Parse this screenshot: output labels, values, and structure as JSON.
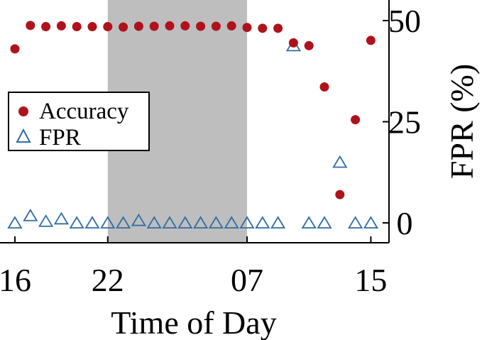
{
  "chart_data": {
    "type": "scatter",
    "xlabel": "Time of Day",
    "ylabel": "FPR (%)",
    "x_ticks": [
      "16",
      "22",
      "07",
      "15"
    ],
    "y_ticks": [
      "0",
      "25",
      "50"
    ],
    "ylim": [
      0,
      50
    ],
    "grid": false,
    "legend_position": "left",
    "shaded_region": {
      "from": "22",
      "to": "07",
      "color": "#bebebe"
    },
    "series": [
      {
        "name": "Accuracy",
        "marker": "filled-circle",
        "color": "#b0121b",
        "values": [
          43,
          48.8,
          48.5,
          48.7,
          48.5,
          48.5,
          48.5,
          48.4,
          48.6,
          48.6,
          48.7,
          48.7,
          48.6,
          48.6,
          48.7,
          48.3,
          48.1,
          48.1,
          44.5,
          43.8,
          33.6,
          7,
          25.5,
          45.1
        ]
      },
      {
        "name": "FPR",
        "marker": "hollow-triangle",
        "color": "#2e6da4",
        "values": [
          0,
          1.8,
          0.4,
          1,
          0,
          0,
          0,
          0,
          0.6,
          0,
          0,
          0,
          0,
          0,
          0,
          0,
          0,
          0,
          43.8,
          0,
          0,
          15,
          0,
          0
        ]
      }
    ]
  }
}
